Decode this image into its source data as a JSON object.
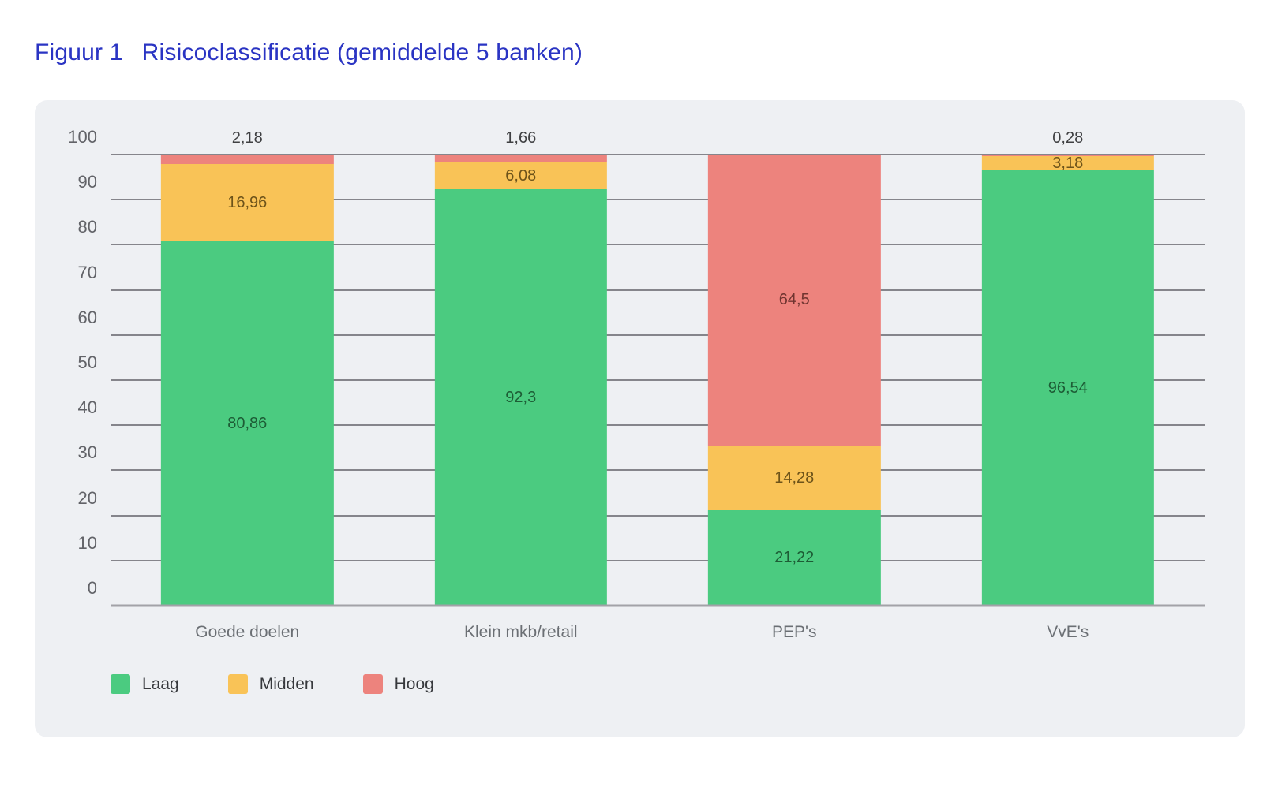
{
  "title": {
    "label": "Figuur 1",
    "text": "Risicoclassificatie (gemiddelde 5 banken)",
    "color": "#2a34c3"
  },
  "chart_data": {
    "type": "bar",
    "stacked": true,
    "title": "Figuur 1  Risicoclassificatie (gemiddelde 5 banken)",
    "xlabel": "",
    "ylabel": "",
    "ylim": [
      0,
      100
    ],
    "y_ticks": [
      0,
      10,
      20,
      30,
      40,
      50,
      60,
      70,
      80,
      90,
      100
    ],
    "grid": true,
    "legend_position": "bottom-left",
    "categories": [
      "Goede doelen",
      "Klein mkb/retail",
      "PEP's",
      "VvE's"
    ],
    "series": [
      {
        "name": "Laag",
        "color": "#4bcb80",
        "label_color": "#1d5c35",
        "values": [
          80.86,
          92.3,
          21.22,
          96.54
        ],
        "labels": [
          "80,86",
          "92,3",
          "21,22",
          "96,54"
        ]
      },
      {
        "name": "Midden",
        "color": "#f9c357",
        "label_color": "#6d531a",
        "values": [
          16.96,
          6.08,
          14.28,
          3.18
        ],
        "labels": [
          "16,96",
          "6,08",
          "14,28",
          "3,18"
        ]
      },
      {
        "name": "Hoog",
        "color": "#ed837d",
        "label_color": "#703430",
        "values": [
          2.18,
          1.66,
          64.5,
          0.28
        ],
        "labels": [
          "2,18",
          "1,66",
          "64,5",
          "0,28"
        ]
      }
    ],
    "colors": {
      "panel_bg": "#eef0f3",
      "gridline": "#85858b",
      "baseline": "#a2a2a7",
      "ytick_text": "#626368",
      "xtick_text": "#6b6f74",
      "legend_text": "#37393d",
      "outside_label": "#3f4042"
    },
    "outside_label_threshold": 4.5
  }
}
